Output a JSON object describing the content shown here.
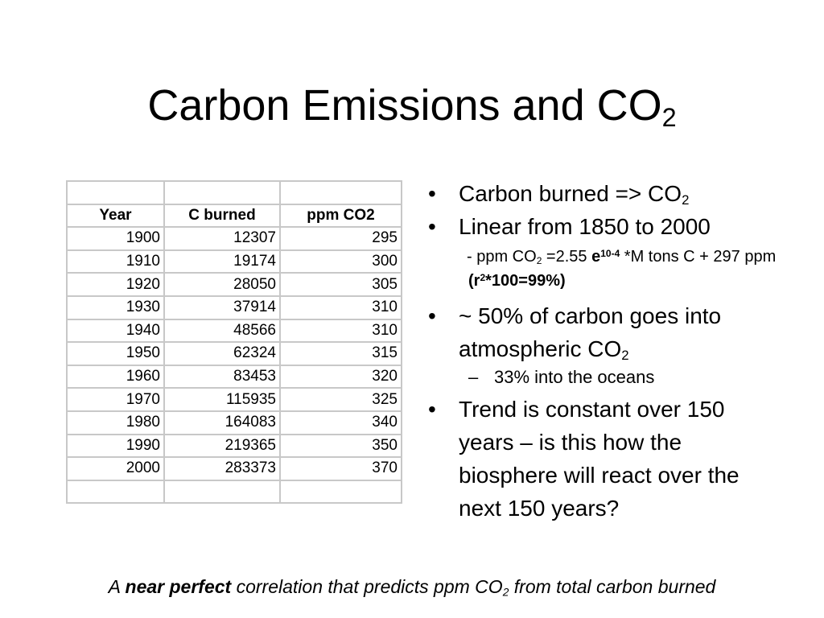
{
  "title": [
    "Carbon Emissions and CO",
    "2"
  ],
  "table": {
    "header": [
      "Year",
      "C burned",
      "ppm CO2"
    ],
    "rows": [
      [
        1900,
        12307,
        295
      ],
      [
        1910,
        19174,
        300
      ],
      [
        1920,
        28050,
        305
      ],
      [
        1930,
        37914,
        310
      ],
      [
        1940,
        48566,
        310
      ],
      [
        1950,
        62324,
        315
      ],
      [
        1960,
        83453,
        320
      ],
      [
        1970,
        115935,
        325
      ],
      [
        1980,
        164083,
        340
      ],
      [
        1990,
        219365,
        350
      ],
      [
        2000,
        283373,
        370
      ]
    ]
  },
  "bullets": [
    {
      "text": [
        "Carbon burned => CO",
        "2"
      ]
    },
    {
      "text": [
        "Linear from 1850 to 2000"
      ],
      "sub": [
        "- ppm CO",
        "2",
        " =2.55 ",
        "e",
        "10-4",
        " *M tons C + 297 ppm ",
        "(r",
        "2",
        "*100=99%)"
      ]
    },
    {
      "text": [
        "~ 50% of carbon goes into atmospheric CO",
        "2"
      ],
      "sub": [
        "33% into the oceans"
      ]
    },
    {
      "text": [
        "Trend is constant over 150 years – is this how the biosphere will react over the next 150 years?"
      ]
    }
  ],
  "footer": [
    "A ",
    "near perfect",
    " correlation that predicts ppm CO",
    "2",
    " from total carbon burned"
  ]
}
